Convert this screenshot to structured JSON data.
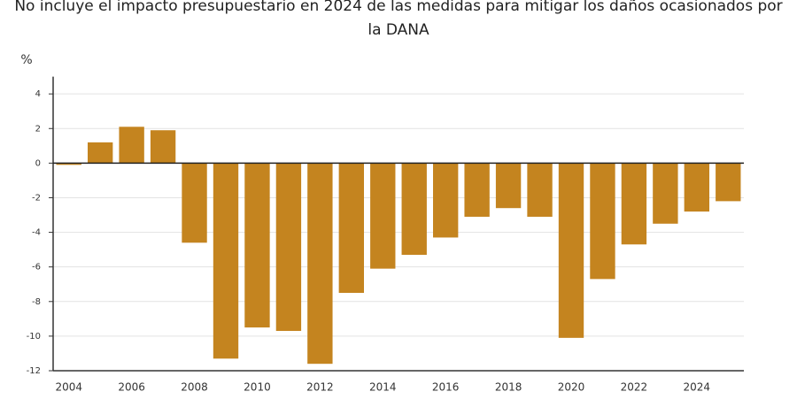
{
  "chart_data": {
    "type": "bar",
    "title": "No incluye el impacto presupuestario en 2024 de las medidas para mitigar los daños ocasionados por la DANA",
    "y_label": "%",
    "categories": [
      "2004",
      null,
      "2006",
      null,
      "2008",
      null,
      "2010",
      null,
      "2012",
      null,
      "2014",
      null,
      "2016",
      null,
      "2018",
      null,
      "2020",
      null,
      "2022",
      null,
      "2024",
      null
    ],
    "values": [
      -0.1,
      1.2,
      2.1,
      1.9,
      -4.6,
      -11.3,
      -9.5,
      -9.7,
      -11.6,
      -7.5,
      -6.1,
      -5.3,
      -4.3,
      -3.1,
      -2.6,
      -3.1,
      -10.1,
      -6.7,
      -4.7,
      -3.5,
      -2.8,
      -2.2
    ],
    "color": "#c4841f",
    "ylim": [
      -12,
      5
    ],
    "yticks": [
      -12,
      -10,
      -8,
      -6,
      -4,
      -2,
      0,
      2,
      4
    ],
    "grid": true
  }
}
